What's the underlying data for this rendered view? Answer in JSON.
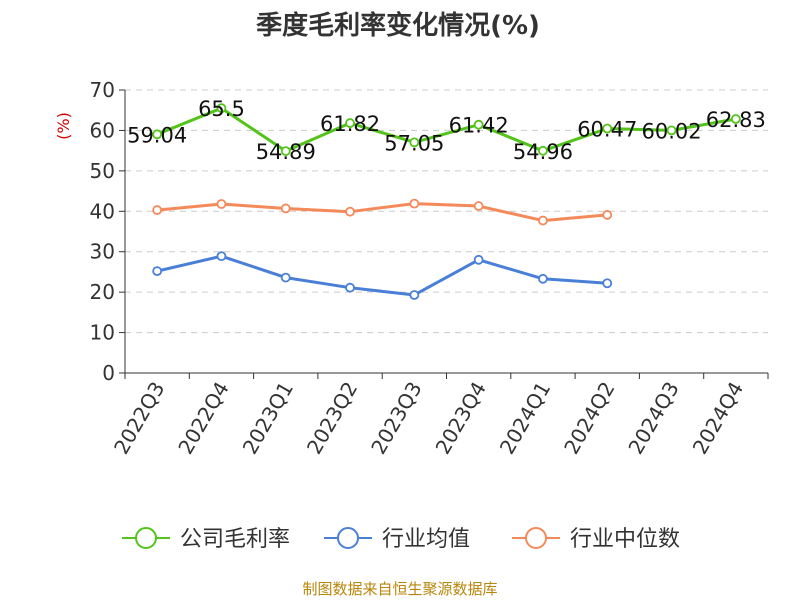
{
  "chart_data": {
    "type": "line",
    "title": "季度毛利率变化情况(%)",
    "ylabel": "(%)",
    "xlabel": "",
    "ylim": [
      0,
      70
    ],
    "yticks": [
      0,
      10,
      20,
      30,
      40,
      50,
      60,
      70
    ],
    "grid": true,
    "categories": [
      "2022Q3",
      "2022Q4",
      "2023Q1",
      "2023Q2",
      "2023Q3",
      "2023Q4",
      "2024Q1",
      "2024Q2",
      "2024Q3",
      "2024Q4"
    ],
    "series": [
      {
        "name": "公司毛利率",
        "color": "#52c41a",
        "values": [
          59.04,
          65.5,
          54.89,
          61.82,
          57.05,
          61.42,
          54.96,
          60.47,
          60.02,
          62.83
        ],
        "labels": [
          "59.04",
          "65.5",
          "54.89",
          "61.82",
          "57.05",
          "61.42",
          "54.96",
          "60.47",
          "60.02",
          "62.83"
        ]
      },
      {
        "name": "行业均值",
        "color": "#4a7fd8",
        "values": [
          25.2,
          28.9,
          23.6,
          21.1,
          19.3,
          28.0,
          23.3,
          22.2,
          null,
          null
        ]
      },
      {
        "name": "行业中位数",
        "color": "#f4895a",
        "values": [
          40.3,
          41.8,
          40.7,
          39.9,
          41.9,
          41.3,
          37.7,
          39.1,
          null,
          null
        ]
      }
    ],
    "legend_position": "bottom"
  },
  "footer": {
    "source": "制图数据来自恒生聚源数据库"
  }
}
